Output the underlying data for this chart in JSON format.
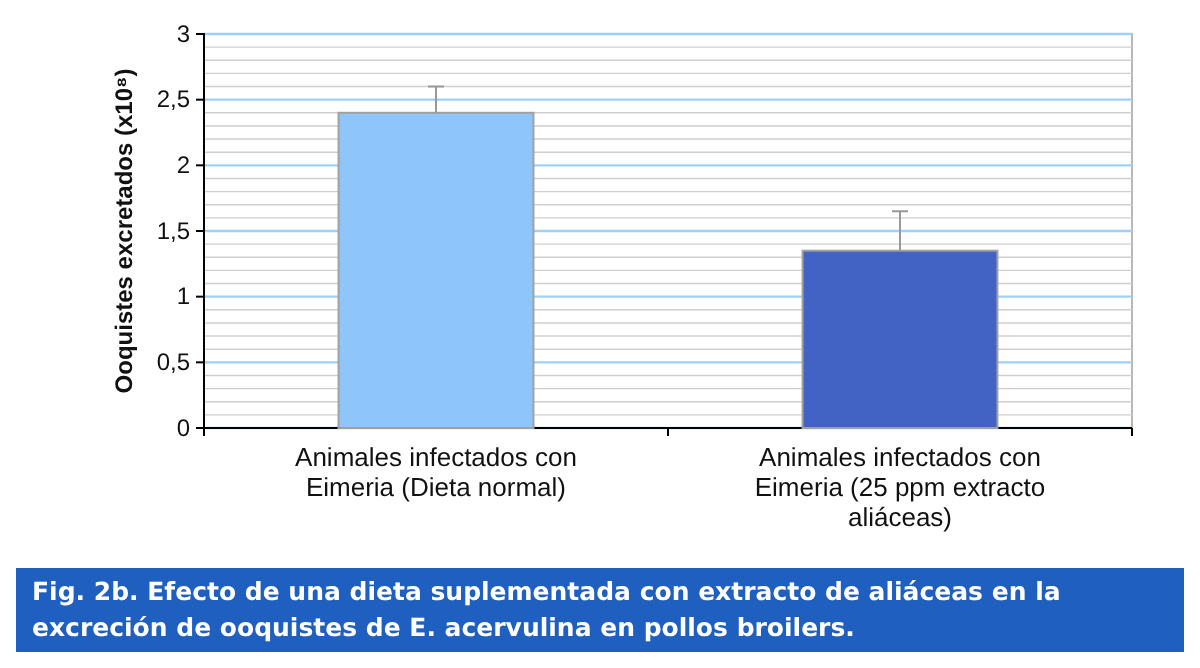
{
  "chart_data": {
    "type": "bar",
    "title": "Fig. 2b. Efecto de una dieta suplementada con extracto de aliáceas en la excreción de ooquistes de E. acervulina en pollos broilers.",
    "ylabel": "Ooquistes excretados (x10⁸)",
    "categories": [
      "Animales infectados con Eimeria (Dieta normal)",
      "Animales infectados con Eimeria (25 ppm extracto aliáceas)"
    ],
    "values": [
      2.4,
      1.35
    ],
    "colors": [
      "#8ec5fb",
      "#4263c4"
    ],
    "errors": [
      0.2,
      0.3
    ],
    "ylim": [
      0,
      3
    ],
    "yticks": [
      0,
      {
        "value": 0.1,
        "label": null
      },
      {
        "value": 0.2,
        "label": null
      },
      {
        "value": 0.3,
        "label": null
      },
      {
        "value": 0.4,
        "label": null
      },
      {
        "value": 0.5,
        "label": "0,5"
      },
      {
        "value": 0.6,
        "label": null
      },
      {
        "value": 0.7,
        "label": null
      },
      {
        "value": 0.8,
        "label": null
      },
      {
        "value": 0.9,
        "label": null
      },
      1,
      {
        "value": 1.1,
        "label": null
      },
      {
        "value": 1.2,
        "label": null
      },
      {
        "value": 1.3,
        "label": null
      },
      {
        "value": 1.4,
        "label": null
      },
      {
        "value": 1.5,
        "label": "1,5"
      },
      {
        "value": 1.6,
        "label": null
      },
      {
        "value": 1.7,
        "label": null
      },
      {
        "value": 1.8,
        "label": null
      },
      {
        "value": 1.9,
        "label": null
      },
      2,
      {
        "value": 2.1,
        "label": null
      },
      {
        "value": 2.2,
        "label": null
      },
      {
        "value": 2.3,
        "label": null
      },
      {
        "value": 2.4,
        "label": null
      },
      {
        "value": 2.5,
        "label": "2,5"
      },
      {
        "value": 2.6,
        "label": null
      },
      {
        "value": 2.7,
        "label": null
      },
      {
        "value": 2.8,
        "label": null
      },
      {
        "value": 2.9,
        "label": null
      },
      3
    ],
    "grid": "y"
  }
}
